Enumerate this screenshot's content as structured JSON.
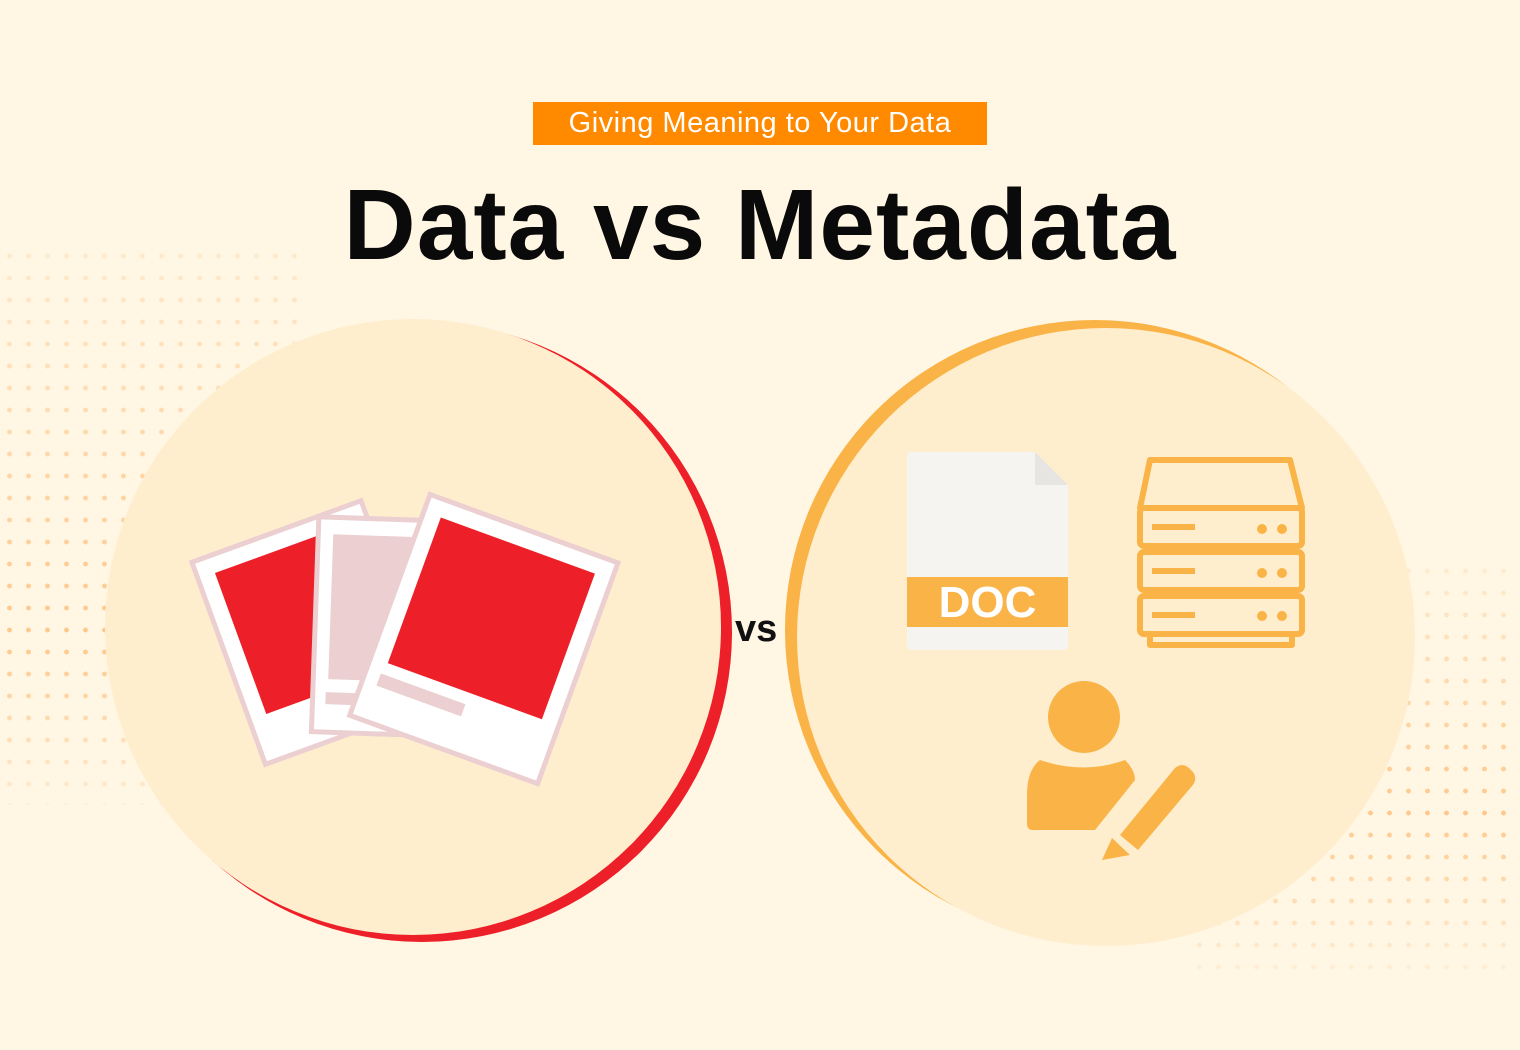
{
  "header": {
    "badge": "Giving Meaning to Your Data",
    "title": "Data vs Metadata"
  },
  "vs_label": "vs",
  "left_panel": {
    "icon": "photo-stack-icon",
    "accent": "#ed1f28"
  },
  "right_panel": {
    "doc_label": "DOC",
    "icons": [
      "document-icon",
      "server-icon",
      "user-edit-icon"
    ],
    "accent": "#fab347"
  },
  "colors": {
    "background": "#fff6e4",
    "circle": "#ffeecd",
    "badge": "#ff8a00"
  }
}
